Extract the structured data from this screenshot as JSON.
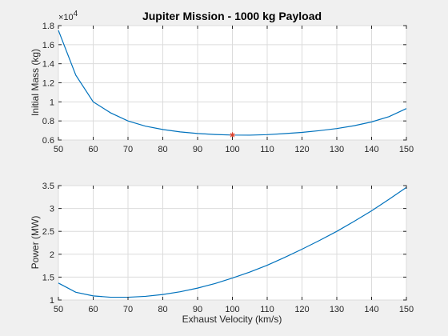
{
  "figure": {
    "xlabel": "Exhaust Velocity (km/s)",
    "line_color": "#0072bd",
    "marker_color": "#e0402a",
    "background": "#f0f0f0"
  },
  "chart_data": [
    {
      "type": "line",
      "title": "Jupiter Mission - 1000 kg Payload",
      "xlabel": "",
      "ylabel": "Initial Mass (kg)",
      "y_exponent_label": "×10",
      "y_exponent_power": "4",
      "xlim": [
        50,
        150
      ],
      "ylim": [
        0.6,
        1.8
      ],
      "xticks": [
        "50",
        "60",
        "70",
        "80",
        "90",
        "100",
        "110",
        "120",
        "130",
        "140",
        "150"
      ],
      "yticks": [
        "0.6",
        "0.8",
        "1",
        "1.2",
        "1.4",
        "1.6",
        "1.8"
      ],
      "grid": true,
      "series": [
        {
          "x": [
            50,
            55,
            60,
            65,
            70,
            75,
            80,
            85,
            90,
            95,
            100,
            105,
            110,
            115,
            120,
            125,
            130,
            135,
            140,
            145,
            150
          ],
          "values": [
            1.75,
            1.28,
            1.0,
            0.885,
            0.8,
            0.745,
            0.71,
            0.685,
            0.668,
            0.658,
            0.652,
            0.651,
            0.656,
            0.667,
            0.68,
            0.698,
            0.72,
            0.75,
            0.79,
            0.845,
            0.93
          ]
        }
      ],
      "markers": [
        {
          "x": 100,
          "y": 0.652,
          "symbol": "*"
        }
      ]
    },
    {
      "type": "line",
      "title": "",
      "xlabel": "Exhaust Velocity (km/s)",
      "ylabel": "Power (MW)",
      "xlim": [
        50,
        150
      ],
      "ylim": [
        1,
        3.5
      ],
      "xticks": [
        "50",
        "60",
        "70",
        "80",
        "90",
        "100",
        "110",
        "120",
        "130",
        "140",
        "150"
      ],
      "yticks": [
        "1",
        "1.5",
        "2",
        "2.5",
        "3",
        "3.5"
      ],
      "grid": true,
      "series": [
        {
          "x": [
            50,
            55,
            60,
            65,
            70,
            75,
            80,
            85,
            90,
            95,
            100,
            105,
            110,
            115,
            120,
            125,
            130,
            135,
            140,
            145,
            150
          ],
          "values": [
            1.37,
            1.17,
            1.09,
            1.06,
            1.06,
            1.08,
            1.12,
            1.18,
            1.26,
            1.36,
            1.48,
            1.61,
            1.76,
            1.93,
            2.11,
            2.3,
            2.5,
            2.72,
            2.95,
            3.2,
            3.46
          ]
        }
      ]
    }
  ]
}
